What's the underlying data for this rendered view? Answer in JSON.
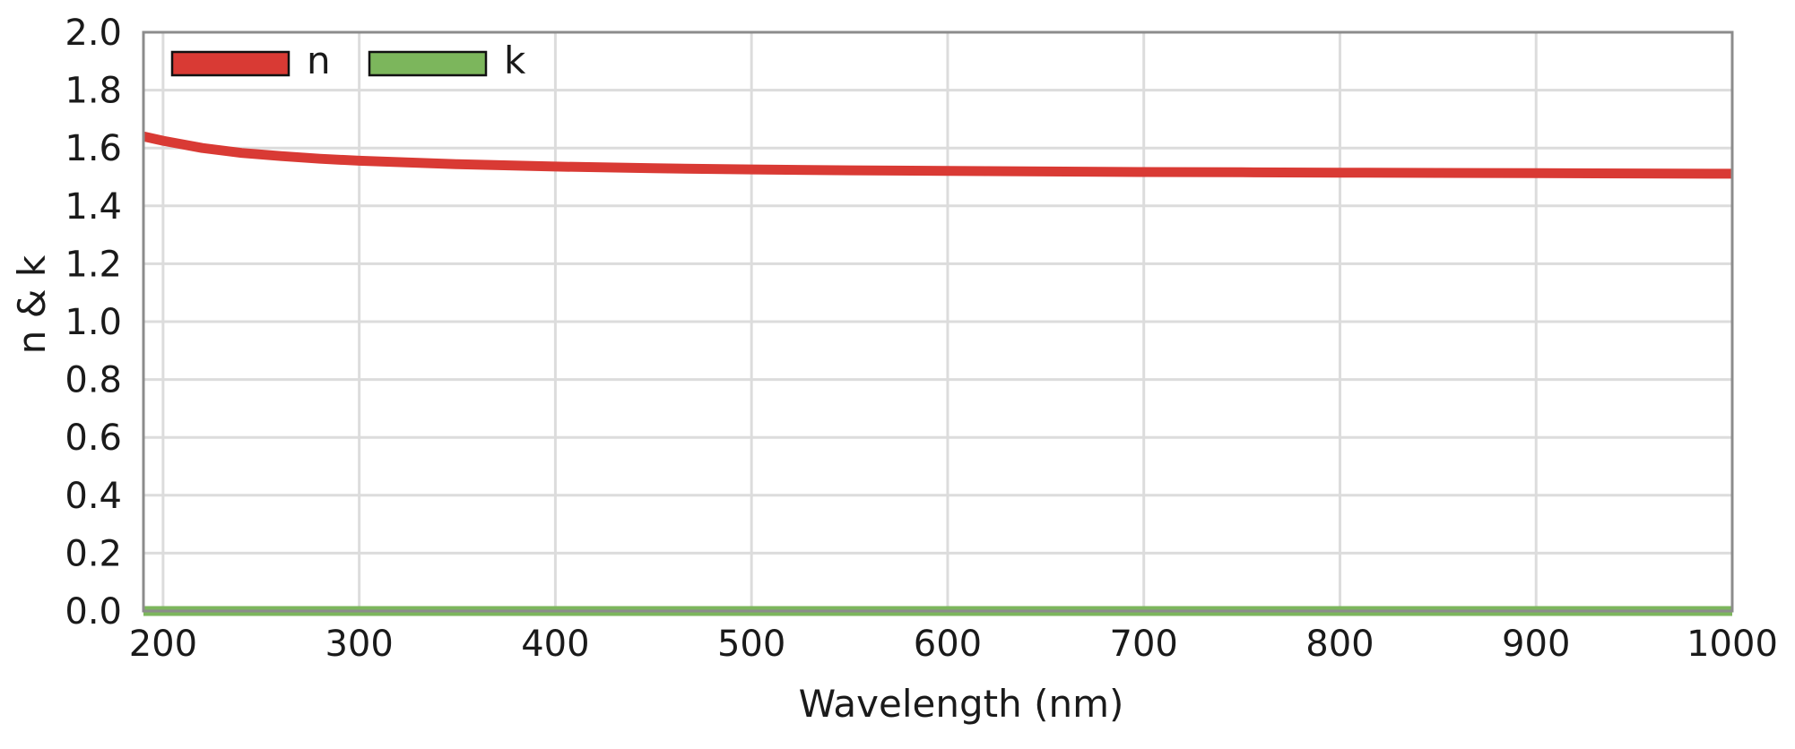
{
  "chart_data": {
    "type": "line",
    "title": "",
    "xlabel": "Wavelength (nm)",
    "ylabel": "n & k",
    "xlim": [
      190,
      1000
    ],
    "ylim": [
      0.0,
      2.0
    ],
    "x_ticks": [
      200,
      300,
      400,
      500,
      600,
      700,
      800,
      900,
      1000
    ],
    "y_ticks": [
      0.0,
      0.2,
      0.4,
      0.6,
      0.8,
      1.0,
      1.2,
      1.4,
      1.6,
      1.8,
      2.0
    ],
    "grid": true,
    "legend_position": "top-left",
    "series": [
      {
        "name": "n",
        "color": "#d93a34",
        "x": [
          190,
          200,
          220,
          240,
          260,
          280,
          300,
          350,
          400,
          450,
          500,
          550,
          600,
          650,
          700,
          750,
          800,
          850,
          900,
          950,
          1000
        ],
        "y": [
          1.64,
          1.625,
          1.6,
          1.583,
          1.572,
          1.563,
          1.556,
          1.544,
          1.536,
          1.53,
          1.526,
          1.523,
          1.521,
          1.519,
          1.517,
          1.516,
          1.515,
          1.514,
          1.513,
          1.512,
          1.511
        ]
      },
      {
        "name": "k",
        "color": "#7cb65c",
        "x": [
          190,
          1000
        ],
        "y": [
          0.0,
          0.0
        ]
      }
    ]
  }
}
